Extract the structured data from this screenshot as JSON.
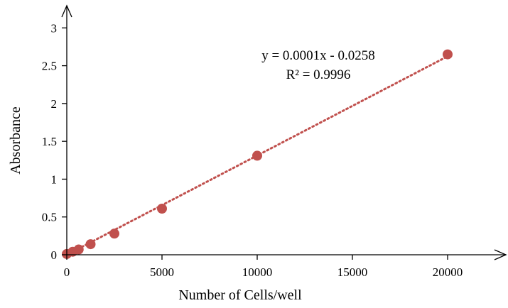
{
  "chart_data": {
    "type": "scatter",
    "title": "",
    "xlabel": "Number of Cells/well",
    "ylabel": "Absorbance",
    "xlim": [
      0,
      22500
    ],
    "ylim": [
      0,
      3.2
    ],
    "x_ticks": [
      0,
      5000,
      10000,
      15000,
      20000
    ],
    "y_ticks": [
      0,
      0.5,
      1,
      1.5,
      2,
      2.5,
      3
    ],
    "x_tick_labels": [
      "0",
      "5000",
      "10000",
      "15000",
      "20000"
    ],
    "y_tick_labels": [
      "0",
      "0.5",
      "1",
      "1.5",
      "2",
      "2.5",
      "3"
    ],
    "grid": false,
    "legend": "none",
    "marker_color": "#C0504D",
    "trendline_color": "#C0504D",
    "series": [
      {
        "x": [
          0,
          312,
          625,
          1250,
          2500,
          5000,
          10000,
          20000
        ],
        "y": [
          0.01,
          0.04,
          0.07,
          0.14,
          0.28,
          0.61,
          1.31,
          2.65
        ]
      }
    ],
    "trendline": {
      "slope": 0.0001325,
      "intercept": -0.0258,
      "equation": "y = 0.0001x - 0.0258",
      "r_squared": "R² = 0.9996"
    }
  }
}
